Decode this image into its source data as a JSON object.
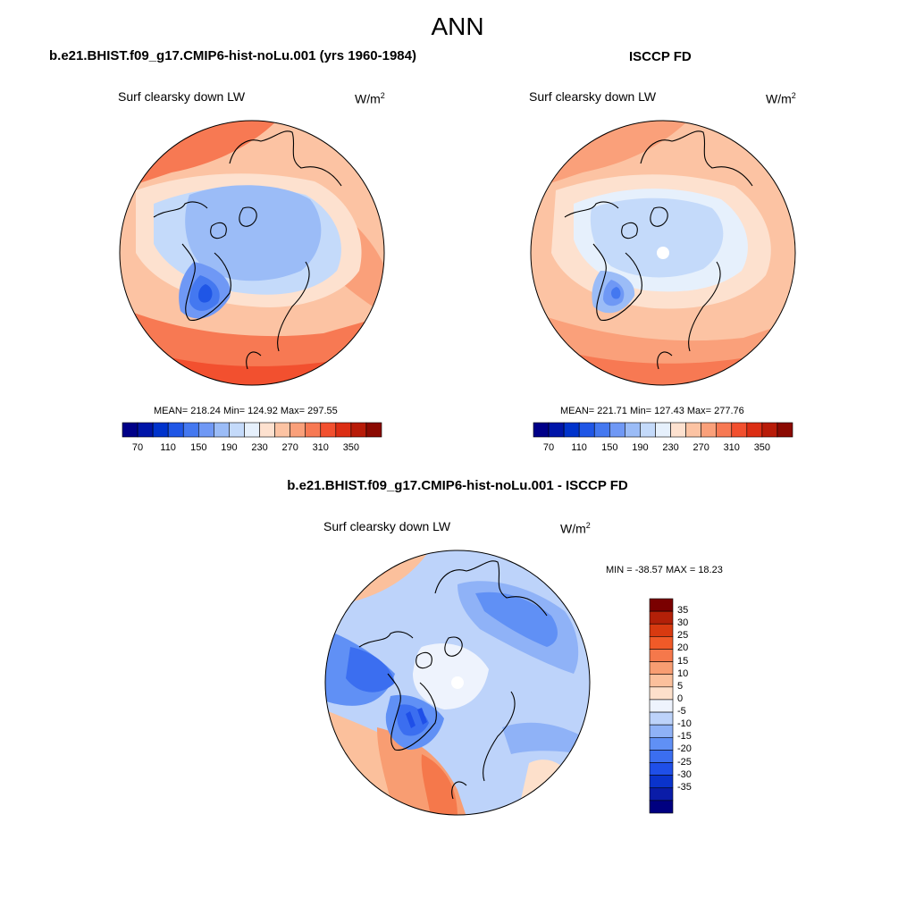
{
  "figure": {
    "title": "ANN"
  },
  "panels": {
    "model": {
      "case_title": "b.e21.BHIST.f09_g17.CMIP6-hist-noLu.001 (yrs 1960-1984)",
      "variable": "Surf clearsky down LW",
      "units": "W/m",
      "units_exp": "2",
      "stats": "MEAN= 218.24  Min= 124.92  Max= 297.55",
      "mean": 218.24,
      "min": 124.92,
      "max": 297.55
    },
    "obs": {
      "case_title": "ISCCP FD",
      "variable": "Surf clearsky down LW",
      "units": "W/m",
      "units_exp": "2",
      "stats": "MEAN= 221.71  Min= 127.43  Max= 277.76",
      "mean": 221.71,
      "min": 127.43,
      "max": 277.76
    },
    "diff": {
      "case_title": "b.e21.BHIST.f09_g17.CMIP6-hist-noLu.001 - ISCCP FD",
      "variable": "Surf clearsky down LW",
      "units": "W/m",
      "units_exp": "2",
      "stats": "MIN = -38.57 MAX =  18.23",
      "min": -38.57,
      "max": 18.23
    }
  },
  "colorbars": {
    "field": {
      "colors": [
        "#000088",
        "#0015a8",
        "#0033cc",
        "#1f56e6",
        "#4478f0",
        "#6f98f5",
        "#9bbcf7",
        "#c4dafa",
        "#e6f0fc",
        "#fde1cf",
        "#fcc3a3",
        "#faa07a",
        "#f77953",
        "#f2502f",
        "#dc2e14",
        "#b81b08",
        "#8b0a02"
      ],
      "tick_labels": [
        "70",
        "110",
        "150",
        "190",
        "230",
        "270",
        "310",
        "350"
      ]
    },
    "diff": {
      "colors": [
        "#000080",
        "#0a1ca8",
        "#0a33cc",
        "#1f4fe8",
        "#3b6ef0",
        "#6090f5",
        "#8fb2f7",
        "#bdd3fa",
        "#eef3fd",
        "#fde0cb",
        "#fbc09c",
        "#f89d72",
        "#f5784b",
        "#f05a28",
        "#d83a10",
        "#b32008",
        "#7a0000"
      ],
      "tick_labels": [
        "35",
        "30",
        "25",
        "20",
        "15",
        "10",
        "5",
        "0",
        "-5",
        "-10",
        "-15",
        "-20",
        "-25",
        "-30",
        "-35"
      ]
    }
  }
}
